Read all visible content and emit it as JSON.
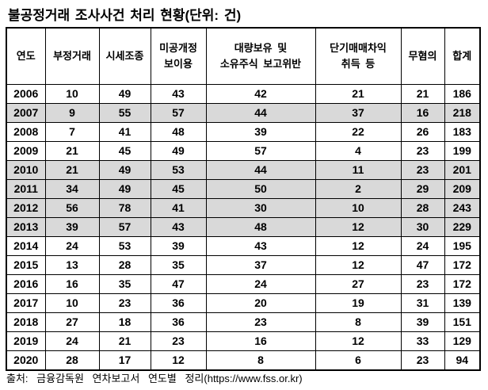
{
  "page": {
    "title": "불공정거래 조사사건 처리 현황(단위: 건)"
  },
  "footer": {
    "source_text": "출처: 금융감독원 연차보고서 연도별 정리(https://www.fss.or.kr)"
  },
  "colors": {
    "highlight_row": "#d9d9d9",
    "border": "#000000",
    "text": "#000000",
    "background": "#ffffff"
  },
  "table": {
    "headers": [
      {
        "line1": "연도"
      },
      {
        "line1": "부정거래"
      },
      {
        "line1": "시세조종"
      },
      {
        "line1": "미공개정",
        "line2": "보이용"
      },
      {
        "line1": "대량보유 및",
        "line2": "소유주식 보고위반"
      },
      {
        "line1": "단기매매차익",
        "line2": "취득 등"
      },
      {
        "line1": "무혐의"
      },
      {
        "line1": "합계"
      }
    ]
  },
  "chart_data": {
    "type": "table",
    "title": "불공정거래 조사사건 처리 현황(단위: 건)",
    "columns": [
      "연도",
      "부정거래",
      "시세조종",
      "미공개정보이용",
      "대량보유 및 소유주식 보고위반",
      "단기매매차익 취득 등",
      "무혐의",
      "합계"
    ],
    "rows": [
      [
        2006,
        10,
        49,
        43,
        42,
        21,
        21,
        186
      ],
      [
        2007,
        9,
        55,
        57,
        44,
        37,
        16,
        218
      ],
      [
        2008,
        7,
        41,
        48,
        39,
        22,
        26,
        183
      ],
      [
        2009,
        21,
        45,
        49,
        57,
        4,
        23,
        199
      ],
      [
        2010,
        21,
        49,
        53,
        44,
        11,
        23,
        201
      ],
      [
        2011,
        34,
        49,
        45,
        50,
        2,
        29,
        209
      ],
      [
        2012,
        56,
        78,
        41,
        30,
        10,
        28,
        243
      ],
      [
        2013,
        39,
        57,
        43,
        48,
        12,
        30,
        229
      ],
      [
        2014,
        24,
        53,
        39,
        43,
        12,
        24,
        195
      ],
      [
        2015,
        13,
        28,
        35,
        37,
        12,
        47,
        172
      ],
      [
        2016,
        16,
        35,
        47,
        24,
        27,
        23,
        172
      ],
      [
        2017,
        10,
        23,
        36,
        20,
        19,
        31,
        139
      ],
      [
        2018,
        27,
        18,
        36,
        23,
        8,
        39,
        151
      ],
      [
        2019,
        24,
        21,
        23,
        16,
        12,
        33,
        129
      ],
      [
        2020,
        28,
        17,
        12,
        8,
        6,
        23,
        94
      ]
    ],
    "highlighted_years": [
      2007,
      2010,
      2011,
      2012,
      2013
    ],
    "source": "출처: 금융감독원 연차보고서 연도별 정리(https://www.fss.or.kr)",
    "legend": false,
    "grid": true
  }
}
